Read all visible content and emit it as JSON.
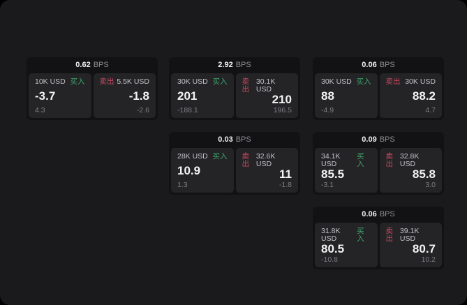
{
  "labels": {
    "buy": "买入",
    "sell": "卖出",
    "bps": "BPS"
  },
  "colors": {
    "buy_green": "#3fa56b",
    "sell_red": "#c8495f",
    "screen_bg": "#1a1a1c",
    "card_bg": "#121214",
    "panel_bg": "#242427"
  },
  "cards": [
    {
      "bps": "0.62",
      "buy": {
        "size": "10K USD",
        "value": "-3.7",
        "delta": "4.3"
      },
      "sell": {
        "size": "5.5K USD",
        "value": "-1.8",
        "delta": "-2.6"
      }
    },
    {
      "bps": "2.92",
      "buy": {
        "size": "30K USD",
        "value": "201",
        "delta": "-188.1"
      },
      "sell": {
        "size": "30.1K USD",
        "value": "210",
        "delta": "196.5"
      }
    },
    {
      "bps": "0.06",
      "buy": {
        "size": "30K USD",
        "value": "88",
        "delta": "-4.9"
      },
      "sell": {
        "size": "30K USD",
        "value": "88.2",
        "delta": "4.7"
      }
    },
    {
      "bps": "0.03",
      "buy": {
        "size": "28K USD",
        "value": "10.9",
        "delta": "1.3"
      },
      "sell": {
        "size": "32.6K USD",
        "value": "11",
        "delta": "-1.8"
      }
    },
    {
      "bps": "0.09",
      "buy": {
        "size": "34.1K USD",
        "value": "85.5",
        "delta": "-3.1"
      },
      "sell": {
        "size": "32.8K USD",
        "value": "85.8",
        "delta": "3.0"
      }
    },
    {
      "bps": "0.06",
      "buy": {
        "size": "31.8K USD",
        "value": "80.5",
        "delta": "-10.8"
      },
      "sell": {
        "size": "39.1K USD",
        "value": "80.7",
        "delta": "10.2"
      }
    }
  ]
}
